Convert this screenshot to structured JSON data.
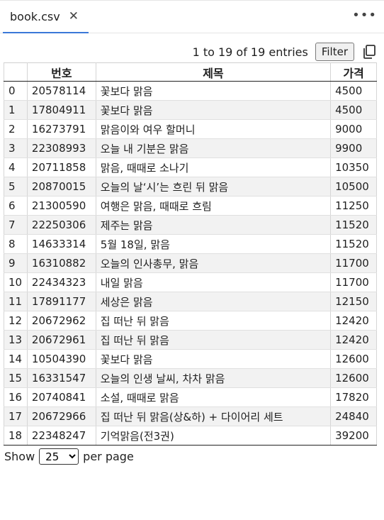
{
  "tab": {
    "title": "book.csv",
    "close_glyph": "✕"
  },
  "menu": {
    "more_glyph": "•••"
  },
  "toolbar": {
    "entries_text": "1 to 19 of 19 entries",
    "filter_label": "Filter"
  },
  "table": {
    "columns": [
      "",
      "번호",
      "제목",
      "가격"
    ],
    "rows": [
      [
        "0",
        "20578114",
        "꽃보다 맑음",
        "4500"
      ],
      [
        "1",
        "17804911",
        "꽃보다 맑음",
        "4500"
      ],
      [
        "2",
        "16273791",
        "맑음이와 여우 할머니",
        "9000"
      ],
      [
        "3",
        "22308993",
        "오늘 내 기분은 맑음",
        "9900"
      ],
      [
        "4",
        "20711858",
        "맑음, 때때로 소나기",
        "10350"
      ],
      [
        "5",
        "20870015",
        "오늘의 날‘시’는 흐린 뒤 맑음",
        "10500"
      ],
      [
        "6",
        "21300590",
        "여행은 맑음, 때때로 흐림",
        "11250"
      ],
      [
        "7",
        "22250306",
        "제주는 맑음",
        "11520"
      ],
      [
        "8",
        "14633314",
        "5월 18일, 맑음",
        "11520"
      ],
      [
        "9",
        "16310882",
        "오늘의 인사총무, 맑음",
        "11700"
      ],
      [
        "10",
        "22434323",
        "내일 맑음",
        "11700"
      ],
      [
        "11",
        "17891177",
        "세상은 맑음",
        "12150"
      ],
      [
        "12",
        "20672962",
        "집 떠난 뒤 맑음",
        "12420"
      ],
      [
        "13",
        "20672961",
        "집 떠난 뒤 맑음",
        "12420"
      ],
      [
        "14",
        "10504390",
        "꽃보다 맑음",
        "12600"
      ],
      [
        "15",
        "16331547",
        "오늘의 인생 날씨, 차차 맑음",
        "12600"
      ],
      [
        "16",
        "20740841",
        "소설, 때때로 맑음",
        "17820"
      ],
      [
        "17",
        "20672966",
        "집 떠난 뒤 맑음(상&하) + 다이어리 세트",
        "24840"
      ],
      [
        "18",
        "22348247",
        "기억맑음(전3권)",
        "39200"
      ]
    ]
  },
  "pager": {
    "show_label": "Show",
    "page_size": "25",
    "per_page_label": "per page"
  }
}
